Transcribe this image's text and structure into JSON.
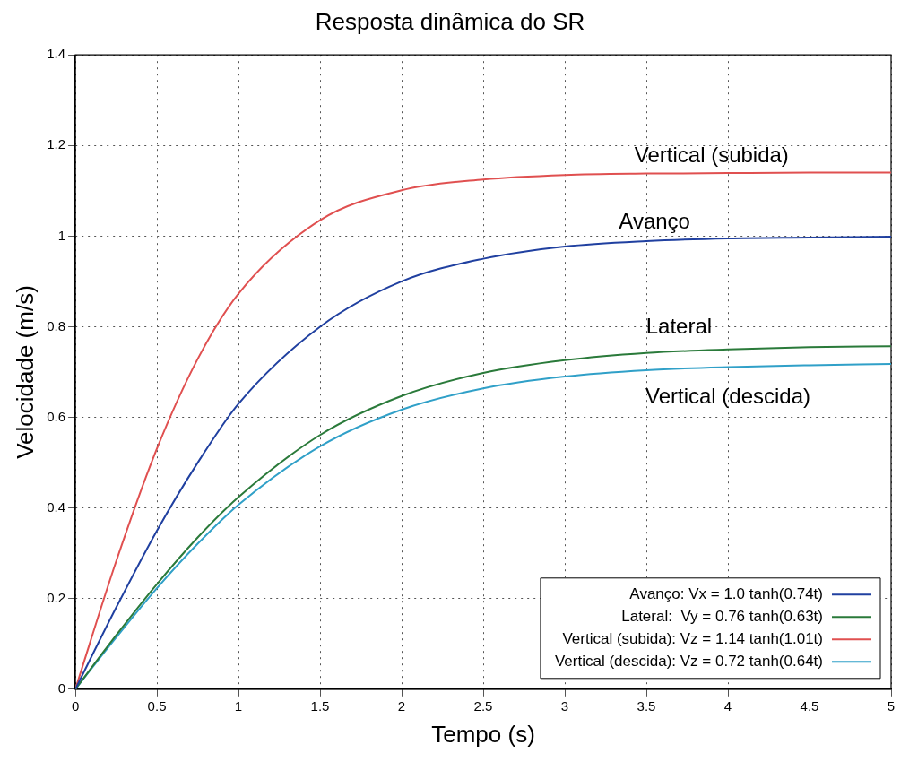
{
  "chart_data": {
    "type": "line",
    "title": "Resposta dinâmica do SR",
    "xlabel": "Tempo (s)",
    "ylabel": "Velocidade (m/s)",
    "x": [
      0,
      0.25,
      0.5,
      0.75,
      1,
      1.5,
      2,
      2.5,
      3,
      3.5,
      4,
      4.5,
      5
    ],
    "series": [
      {
        "name": "Avanço: Vx = 1.0 tanh(0.74t)",
        "color": "#2040a0",
        "values": [
          0,
          0.18,
          0.35,
          0.5,
          0.63,
          0.8,
          0.9,
          0.95,
          0.977,
          0.989,
          0.995,
          0.997,
          0.999
        ]
      },
      {
        "name": "Lateral:  Vy = 0.76 tanh(0.63t)",
        "color": "#2a7a3a",
        "values": [
          0,
          0.119,
          0.232,
          0.335,
          0.424,
          0.561,
          0.647,
          0.698,
          0.726,
          0.742,
          0.75,
          0.755,
          0.757
        ]
      },
      {
        "name": "Vertical (subida): Vz = 1.14 tanh(1.01t)",
        "color": "#e05050",
        "values": [
          0,
          0.282,
          0.531,
          0.729,
          0.873,
          1.035,
          1.101,
          1.125,
          1.135,
          1.138,
          1.139,
          1.14,
          1.14
        ]
      },
      {
        "name": "Vertical (descida): Vz = 0.72 tanh(0.64t)",
        "color": "#30a0c8",
        "values": [
          0,
          0.114,
          0.223,
          0.321,
          0.407,
          0.536,
          0.617,
          0.664,
          0.69,
          0.704,
          0.711,
          0.715,
          0.718
        ]
      }
    ],
    "xlim": [
      0,
      5
    ],
    "xticks": [
      0,
      0.5,
      1,
      1.5,
      2,
      2.5,
      3,
      3.5,
      4,
      4.5,
      5
    ],
    "ylim": [
      0,
      1.4
    ],
    "yticks": [
      0,
      0.2,
      0.4,
      0.6,
      0.8,
      1,
      1.2,
      1.4
    ],
    "grid": true,
    "legend": "bottom right",
    "marker": "none",
    "line_style": "solid",
    "annotations": [
      "Vertical (descida)",
      "Lateral",
      "Avanço",
      "Vertical (subida)"
    ]
  }
}
